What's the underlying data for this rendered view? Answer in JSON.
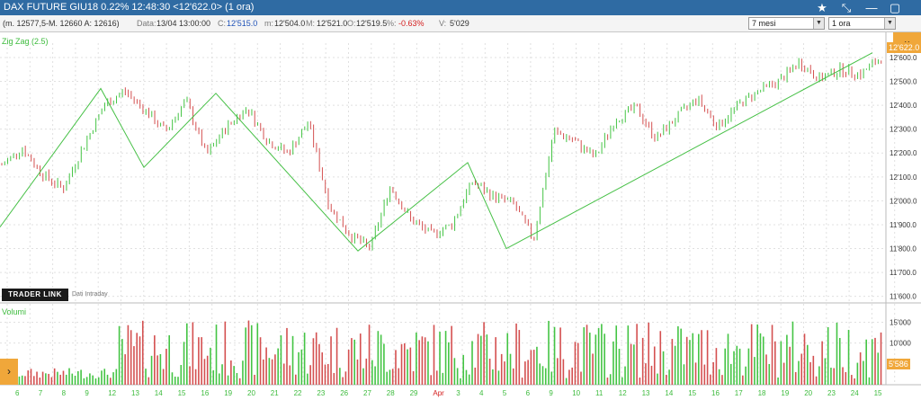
{
  "window": {
    "title": "DAX FUTURE GIU18 0.22% 12:48:30  <12'622.0> (1 ora)",
    "icons": [
      "star-icon",
      "pin-icon",
      "minimize-icon",
      "maximize-icon"
    ]
  },
  "infobar": {
    "spread": "(m. 12577,5-M. 12660 A: 12616)",
    "data_label": "Data:",
    "data_value": "13/04 13:00:00",
    "close_label": "C:",
    "close_value": "12'515.0",
    "min_label": "m:",
    "min_value": "12'504.0",
    "max_label": "M:",
    "max_value": "12'521.0",
    "open_label": "O:",
    "open_value": "12'519.5",
    "pct_label": "%:",
    "pct_value": "-0.63%",
    "vol_label": "V:",
    "vol_value": "5'029"
  },
  "controls": {
    "period_select": "7 mesi",
    "interval_select": "1 ora"
  },
  "panels": {
    "indicator_label": "Zig Zag (2.5)",
    "volume_label": "Volumi",
    "logo_text": "TRADER LINK",
    "logo_sub": "Dati Intraday"
  },
  "colors": {
    "up": "#44c444",
    "down": "#d45050",
    "zigzag": "#46c046",
    "badge": "#f0a73a",
    "titlebar": "#2f6ba3"
  },
  "chart_data": {
    "type": "candlestick",
    "price_axis": {
      "ticks": [
        "12'600.0",
        "12'500.0",
        "12'400.0",
        "12'300.0",
        "12'200.0",
        "12'100.0",
        "12'000.0",
        "11'900.0",
        "11'800.0",
        "11'700.0",
        "11'600.0"
      ],
      "ylim": [
        11580,
        12660
      ],
      "last_price": "12'622.0"
    },
    "volume_axis": {
      "ticks": [
        "15'000",
        "10'000"
      ],
      "last_volume": "5'586"
    },
    "x_labels": [
      {
        "t": "6",
        "c": "#3dbb3d"
      },
      {
        "t": "7",
        "c": "#3dbb3d"
      },
      {
        "t": "8",
        "c": "#3dbb3d"
      },
      {
        "t": "9",
        "c": "#3dbb3d"
      },
      {
        "t": "12",
        "c": "#3dbb3d"
      },
      {
        "t": "13",
        "c": "#3dbb3d"
      },
      {
        "t": "14",
        "c": "#3dbb3d"
      },
      {
        "t": "15",
        "c": "#3dbb3d"
      },
      {
        "t": "16",
        "c": "#3dbb3d"
      },
      {
        "t": "19",
        "c": "#3dbb3d"
      },
      {
        "t": "20",
        "c": "#3dbb3d"
      },
      {
        "t": "21",
        "c": "#3dbb3d"
      },
      {
        "t": "22",
        "c": "#3dbb3d"
      },
      {
        "t": "23",
        "c": "#3dbb3d"
      },
      {
        "t": "26",
        "c": "#3dbb3d"
      },
      {
        "t": "27",
        "c": "#3dbb3d"
      },
      {
        "t": "28",
        "c": "#3dbb3d"
      },
      {
        "t": "29",
        "c": "#3dbb3d"
      },
      {
        "t": "Apr",
        "c": "#d42020"
      },
      {
        "t": "3",
        "c": "#3dbb3d"
      },
      {
        "t": "4",
        "c": "#3dbb3d"
      },
      {
        "t": "5",
        "c": "#3dbb3d"
      },
      {
        "t": "6",
        "c": "#3dbb3d"
      },
      {
        "t": "9",
        "c": "#3dbb3d"
      },
      {
        "t": "10",
        "c": "#3dbb3d"
      },
      {
        "t": "11",
        "c": "#3dbb3d"
      },
      {
        "t": "12",
        "c": "#3dbb3d"
      },
      {
        "t": "13",
        "c": "#3dbb3d"
      },
      {
        "t": "14",
        "c": "#3dbb3d"
      },
      {
        "t": "15",
        "c": "#3dbb3d"
      },
      {
        "t": "16",
        "c": "#3dbb3d"
      },
      {
        "t": "17",
        "c": "#3dbb3d"
      },
      {
        "t": "18",
        "c": "#3dbb3d"
      },
      {
        "t": "19",
        "c": "#3dbb3d"
      },
      {
        "t": "20",
        "c": "#3dbb3d"
      },
      {
        "t": "23",
        "c": "#3dbb3d"
      },
      {
        "t": "24",
        "c": "#3dbb3d"
      },
      {
        "t": "15",
        "c": "#3dbb3d"
      }
    ],
    "zigzag": [
      11890,
      12470,
      12140,
      12450,
      11790,
      12160,
      11800,
      12620
    ],
    "closes": [
      12150,
      12220,
      12110,
      12050,
      12230,
      12400,
      12460,
      12380,
      12290,
      12420,
      12190,
      12310,
      12390,
      12250,
      12200,
      12330,
      11980,
      11860,
      11800,
      12060,
      11920,
      11860,
      11900,
      12080,
      12020,
      11990,
      11840,
      12290,
      12250,
      12180,
      12340,
      12390,
      12260,
      12350,
      12430,
      12310,
      12400,
      12460,
      12500,
      12580,
      12510,
      12550,
      12530,
      12600
    ]
  }
}
